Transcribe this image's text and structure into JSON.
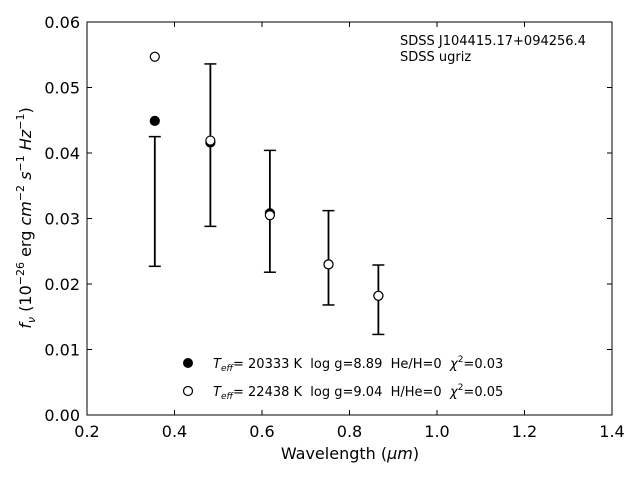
{
  "chart_data": {
    "type": "scatter",
    "xlabel_prefix": "Wavelength (",
    "xlabel_unit": "μm",
    "xlabel_suffix": ")",
    "ylabel": "f_ν (10^-26 erg cm^-2 s^-1 Hz^-1)",
    "xlim": [
      0.2,
      1.4
    ],
    "ylim": [
      0.0,
      0.06
    ],
    "x_ticks": [
      0.2,
      0.4,
      0.6,
      0.8,
      1.0,
      1.2,
      1.4
    ],
    "x_tick_labels": [
      "0.2",
      "0.4",
      "0.6",
      "0.8",
      "1.0",
      "1.2",
      "1.4"
    ],
    "y_ticks": [
      0.0,
      0.01,
      0.02,
      0.03,
      0.04,
      0.05,
      0.06
    ],
    "y_tick_labels": [
      "0.00",
      "0.01",
      "0.02",
      "0.03",
      "0.04",
      "0.05",
      "0.06"
    ],
    "annotation": [
      "SDSS J104415.17+094256.4",
      "SDSS ugriz"
    ],
    "observed": {
      "x": [
        0.355,
        0.482,
        0.618,
        0.752,
        0.866
      ],
      "y": [
        0.0326,
        0.0412,
        0.0311,
        0.024,
        0.0176
      ],
      "yerr": [
        0.0099,
        0.0124,
        0.0093,
        0.0072,
        0.0053
      ]
    },
    "series": [
      {
        "name": "Teff= 20333 K  log g=8.89  He/H=0  χ²=0.03",
        "marker": "filled",
        "x": [
          0.355,
          0.482,
          0.618,
          0.752,
          0.866
        ],
        "y": [
          0.0449,
          0.0416,
          0.0308,
          0.023,
          0.0182
        ]
      },
      {
        "name": "Teff= 22438 K  log g=9.04  H/He=0  χ²=0.05",
        "marker": "open",
        "x": [
          0.355,
          0.482,
          0.618,
          0.752,
          0.866
        ],
        "y": [
          0.0547,
          0.0419,
          0.0305,
          0.023,
          0.0182
        ]
      }
    ],
    "legend": [
      {
        "marker": "filled",
        "teff": "20333 K",
        "rest": "  log g=8.89  He/H=0  ",
        "chi2": "0.03"
      },
      {
        "marker": "open",
        "teff": "22438 K",
        "rest": "  log g=9.04  H/He=0  ",
        "chi2": "0.05"
      }
    ],
    "legend_placement": "lower-center",
    "grid": false,
    "colors": {
      "marker": "#000000",
      "axes": "#000000",
      "background": "#ffffff"
    }
  }
}
